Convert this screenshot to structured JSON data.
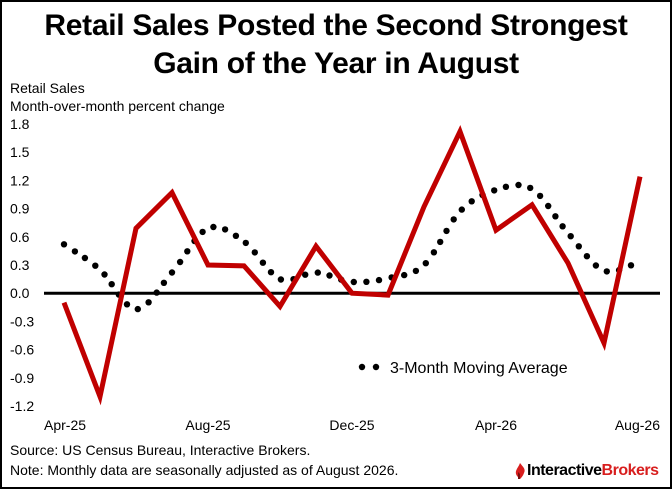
{
  "title_line1": "Retail Sales Posted the Second Strongest",
  "title_line2": "Gain of the Year in August",
  "ylabel_line1": "Retail Sales",
  "ylabel_line2": "Month-over-month percent change",
  "source": "Source: US Census Bureau, Interactive Brokers.",
  "note": "Note: Monthly data are seasonally adjusted as of August 2026.",
  "logo": {
    "part1": "Interactive",
    "part2": "Brokers"
  },
  "colors": {
    "series": "#c00000",
    "moving_avg": "#000000",
    "zero_line": "#000000",
    "accent": "#d81e1e"
  },
  "chart_data": {
    "type": "line",
    "x": [
      "Apr-25",
      "May-25",
      "Jun-25",
      "Jul-25",
      "Aug-25",
      "Sep-25",
      "Oct-25",
      "Nov-25",
      "Dec-25",
      "Jan-26",
      "Feb-26",
      "Mar-26",
      "Apr-26",
      "May-26",
      "Jun-26",
      "Jul-26",
      "Aug-26"
    ],
    "x_tick_labels": [
      "Apr-25",
      "Aug-25",
      "Dec-25",
      "Apr-26",
      "Aug-26"
    ],
    "y_ticks": [
      "1.8",
      "1.5",
      "1.2",
      "0.9",
      "0.6",
      "0.3",
      "0.0",
      "-0.3",
      "-0.6",
      "-0.9",
      "-1.2"
    ],
    "ylim": [
      -1.2,
      1.8
    ],
    "grid": false,
    "legend_position": "bottom-right",
    "series": [
      {
        "style": "solid",
        "values": [
          -0.1,
          -1.1,
          0.69,
          1.07,
          0.3,
          0.29,
          -0.14,
          0.5,
          0.0,
          -0.02,
          0.92,
          1.72,
          0.67,
          0.94,
          0.32,
          -0.53,
          1.24
        ]
      },
      {
        "name": "3-Month Moving Average",
        "style": "dotted",
        "values": [
          0.52,
          0.25,
          -0.17,
          0.22,
          0.69,
          0.55,
          0.15,
          0.22,
          0.12,
          0.16,
          0.3,
          0.87,
          1.1,
          1.11,
          0.64,
          0.24,
          0.34
        ]
      }
    ]
  }
}
